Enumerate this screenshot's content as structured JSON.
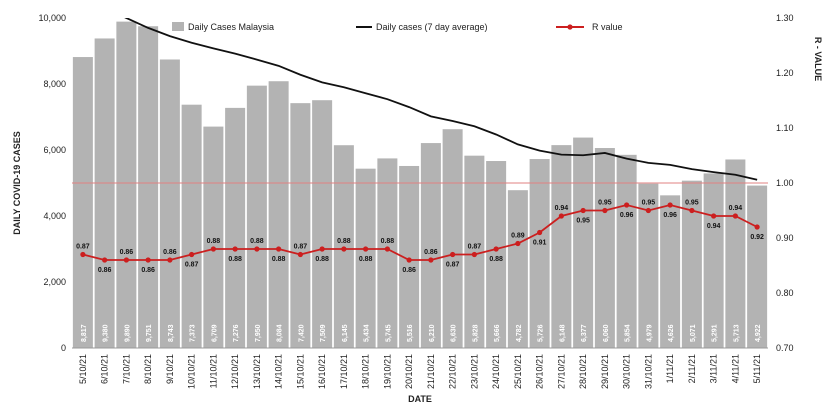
{
  "chart_data": {
    "type": "bar",
    "categories": [
      "5/10/21",
      "6/10/21",
      "7/10/21",
      "8/10/21",
      "9/10/21",
      "10/10/21",
      "11/10/21",
      "12/10/21",
      "13/10/21",
      "14/10/21",
      "15/10/21",
      "16/10/21",
      "17/10/21",
      "18/10/21",
      "19/10/21",
      "20/10/21",
      "21/10/21",
      "22/10/21",
      "23/10/21",
      "24/10/21",
      "25/10/21",
      "26/10/21",
      "27/10/21",
      "28/10/21",
      "29/10/21",
      "30/10/21",
      "31/10/21",
      "1/11/21",
      "2/11/21",
      "3/11/21",
      "4/11/21",
      "5/11/21"
    ],
    "series": [
      {
        "name": "Daily Cases Malaysia",
        "type": "bar",
        "axis": "left",
        "color": "#b3b3b3",
        "values": [
          8817,
          9380,
          9890,
          9751,
          8743,
          7373,
          6709,
          7276,
          7950,
          8084,
          7420,
          7509,
          6145,
          5434,
          5745,
          5516,
          6210,
          6630,
          5828,
          5666,
          4782,
          5726,
          6148,
          6377,
          6060,
          5854,
          4979,
          4626,
          5071,
          5291,
          5713,
          4922
        ],
        "labels": [
          "8,817",
          "9,380",
          "9,890",
          "9,751",
          "8,743",
          "7,373",
          "6,709",
          "7,276",
          "7,950",
          "8,084",
          "7,420",
          "7,509",
          "6,145",
          "5,434",
          "5,745",
          "5,516",
          "6,210",
          "6,630",
          "5,828",
          "5,666",
          "4,782",
          "5,726",
          "6,148",
          "6,377",
          "6,060",
          "5,854",
          "4,979",
          "4,626",
          "5,071",
          "5,291",
          "5,713",
          "4,922"
        ]
      },
      {
        "name": "Daily cases (7 day average)",
        "type": "line",
        "axis": "left",
        "color": "#111111",
        "values": [
          10500,
          10300,
          10000,
          9700,
          9450,
          9250,
          9080,
          8920,
          8740,
          8550,
          8280,
          8050,
          7900,
          7720,
          7540,
          7300,
          7020,
          6880,
          6720,
          6470,
          6170,
          5980,
          5860,
          5840,
          5910,
          5740,
          5610,
          5550,
          5420,
          5330,
          5250,
          5100
        ]
      },
      {
        "name": "R value",
        "type": "line",
        "axis": "right",
        "color": "#cc1f1f",
        "values": [
          0.87,
          0.86,
          0.86,
          0.86,
          0.86,
          0.87,
          0.88,
          0.88,
          0.88,
          0.88,
          0.87,
          0.88,
          0.88,
          0.88,
          0.88,
          0.86,
          0.86,
          0.87,
          0.87,
          0.88,
          0.89,
          0.91,
          0.94,
          0.95,
          0.95,
          0.96,
          0.95,
          0.96,
          0.95,
          0.94,
          0.94,
          0.92
        ],
        "labels": [
          "0.87",
          "0.86",
          "0.86",
          "0.86",
          "0.86",
          "0.87",
          "0.88",
          "0.88",
          "0.88",
          "0.88",
          "0.87",
          "0.88",
          "0.88",
          "0.88",
          "0.88",
          "0.86",
          "0.86",
          "0.87",
          "0.87",
          "0.88",
          "0.89",
          "0.91",
          "0.94",
          "0.95",
          "0.95",
          "0.96",
          "0.95",
          "0.96",
          "0.95",
          "0.94",
          "0.94",
          "0.92"
        ]
      }
    ],
    "reference_line": {
      "axis": "right",
      "value": 1.0,
      "color": "#e08080"
    },
    "xlabel": "DATE",
    "ylabel": "DAILY COVID-19 CASES",
    "y2label": "R - VALUE",
    "ylim": [
      0,
      10000
    ],
    "y2lim": [
      0.7,
      1.3
    ],
    "yticks": [
      0,
      2000,
      4000,
      6000,
      8000,
      10000
    ],
    "ytick_labels": [
      "0",
      "2,000",
      "4,000",
      "6,000",
      "8,000",
      "10,000"
    ],
    "y2ticks": [
      0.7,
      0.8,
      0.9,
      1.0,
      1.1,
      1.2,
      1.3
    ],
    "y2tick_labels": [
      "0.70",
      "0.80",
      "0.90",
      "1.00",
      "1.10",
      "1.20",
      "1.30"
    ],
    "grid": false,
    "legend_position": "top"
  }
}
